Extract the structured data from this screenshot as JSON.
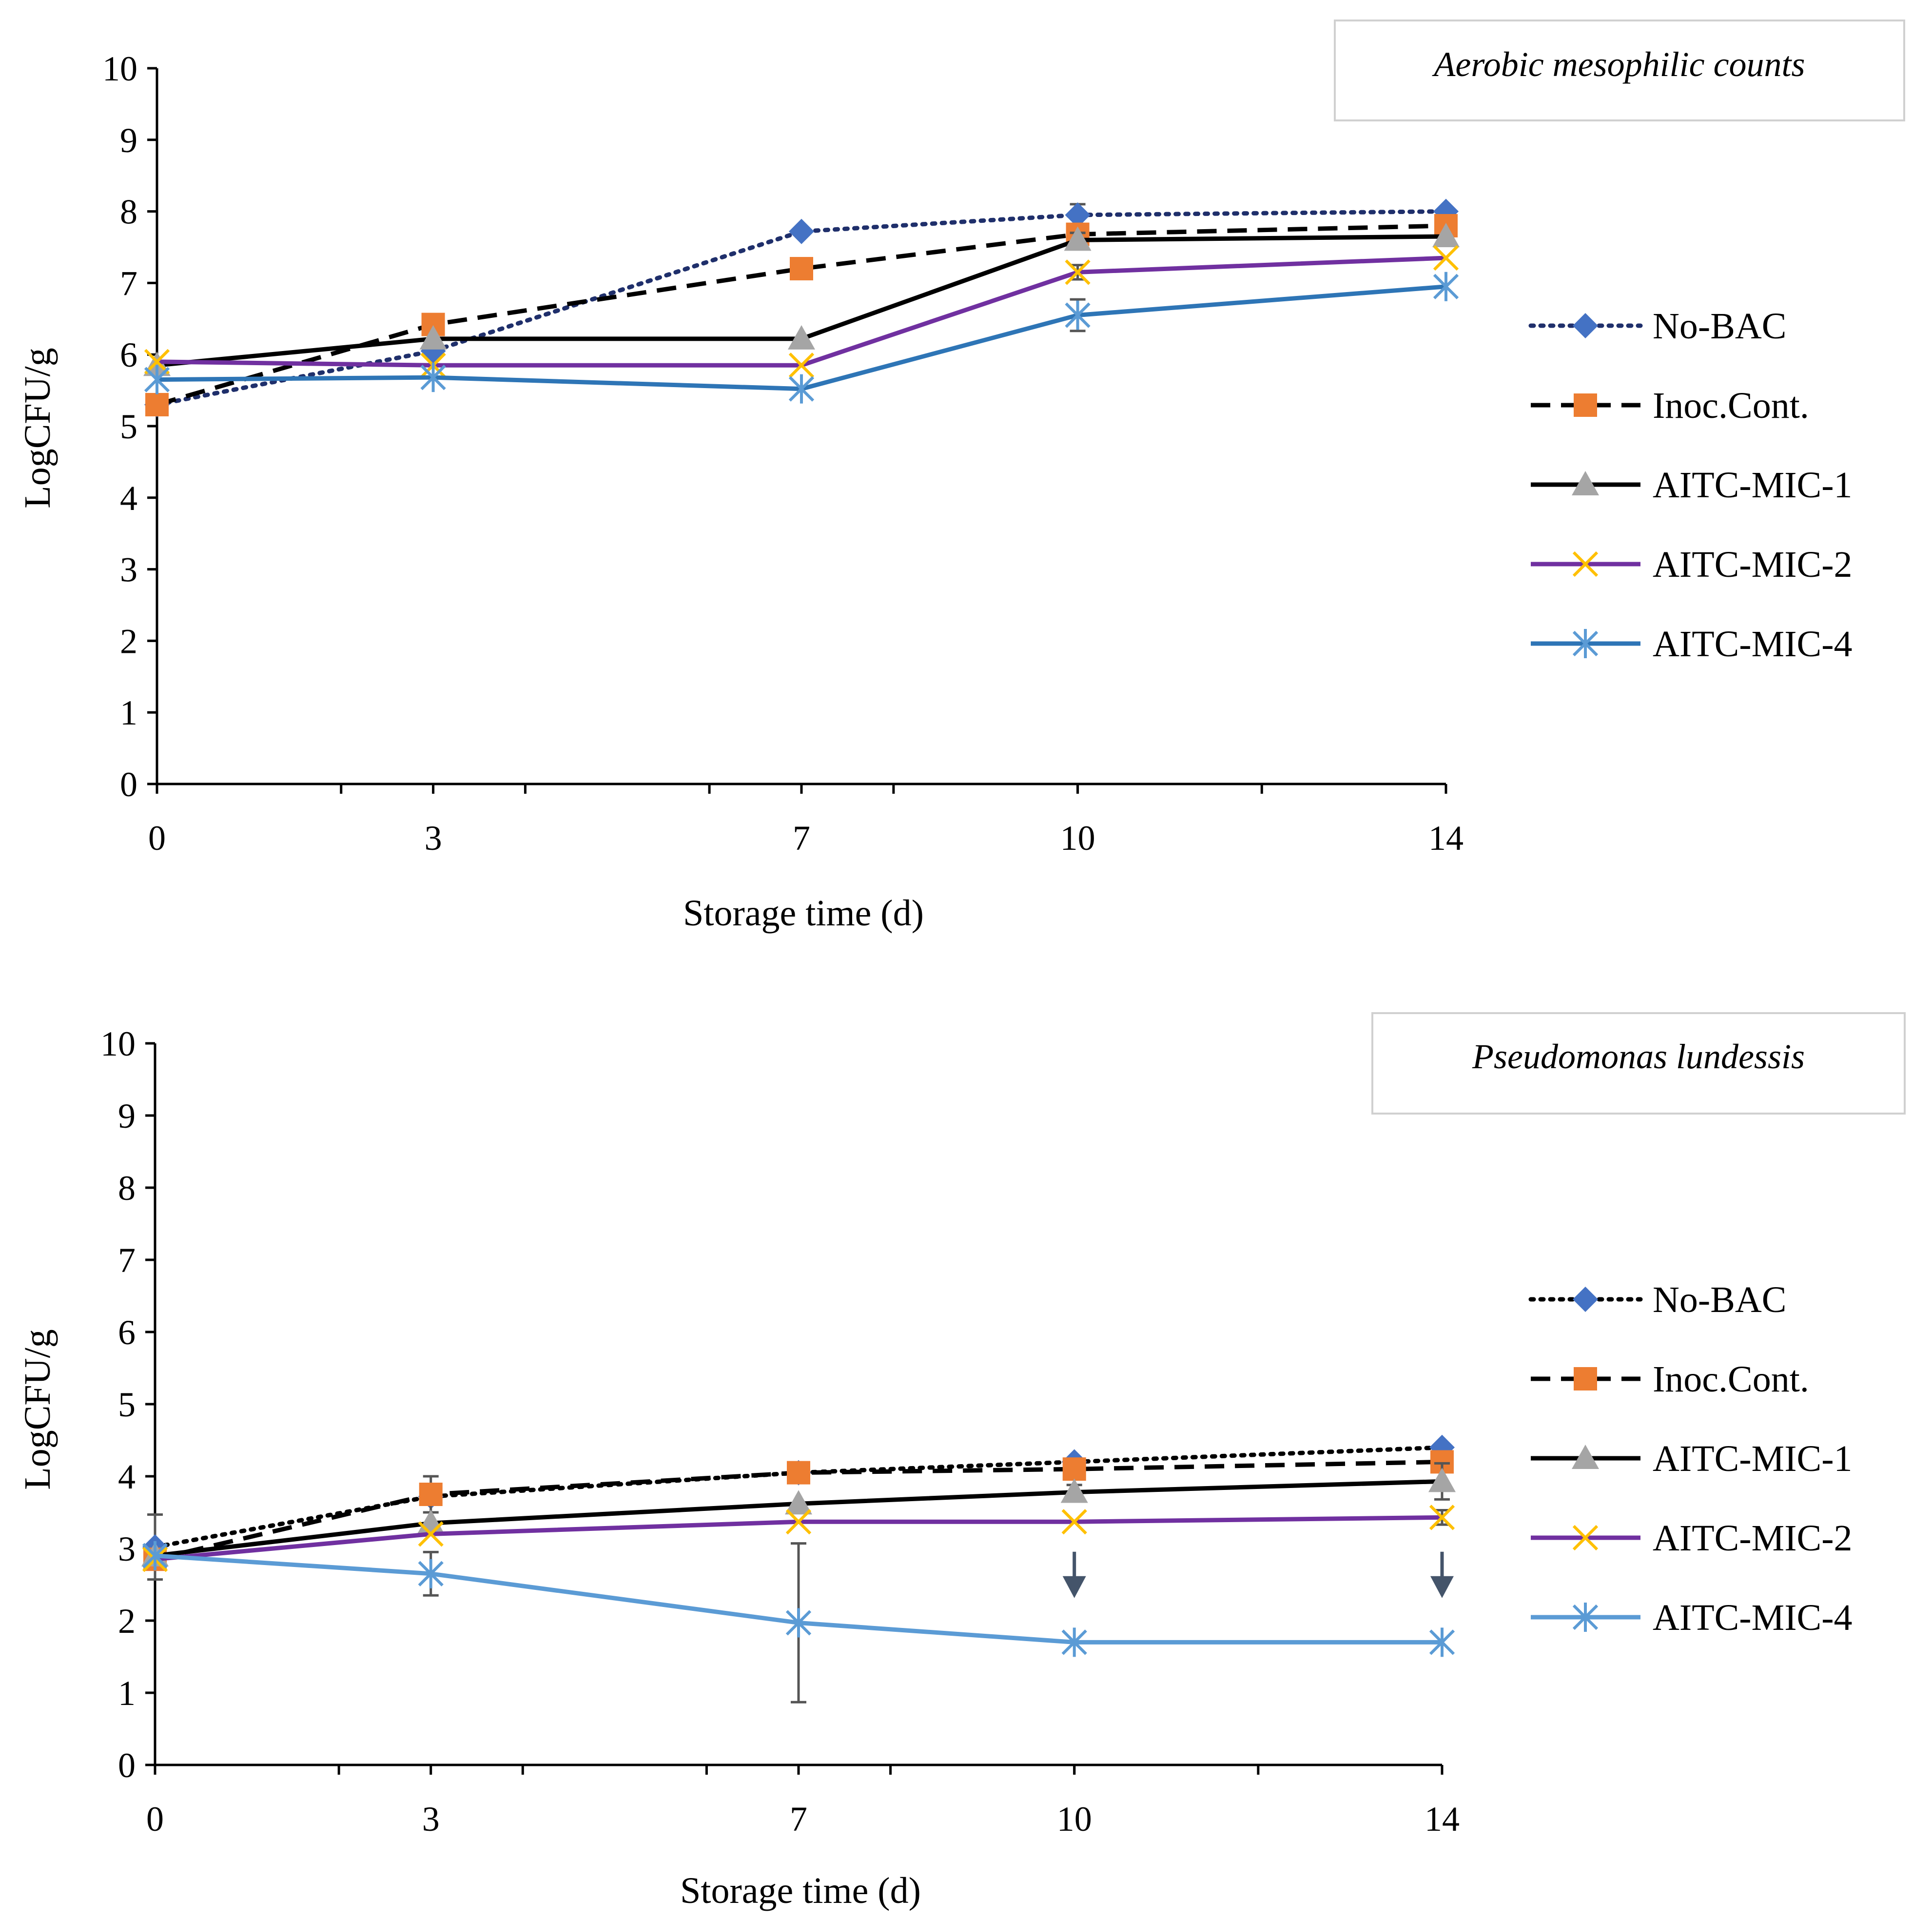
{
  "chart_data": [
    {
      "type": "line",
      "title": "Aerobic mesophilic counts",
      "xlabel": "Storage time (d)",
      "ylabel": "LogCFU/g",
      "categories": [
        "0",
        "3",
        "7",
        "10",
        "14"
      ],
      "ylim": [
        0,
        10
      ],
      "yticks": [
        "0",
        "1",
        "2",
        "3",
        "4",
        "5",
        "6",
        "7",
        "8",
        "9",
        "10"
      ],
      "legend_position": "right",
      "series": [
        {
          "name": "No-BAC",
          "values": [
            5.3,
            6.05,
            7.72,
            7.95,
            8.0
          ],
          "error": [
            0.05,
            0.05,
            0.05,
            0.15,
            0.05
          ],
          "line_color": "#1f2f6b",
          "marker_color": "#4472c4",
          "marker": "diamond",
          "dash": "dotted"
        },
        {
          "name": "Inoc.Cont.",
          "values": [
            5.3,
            6.42,
            7.2,
            7.68,
            7.8
          ],
          "error": [
            0.05,
            0.05,
            0.05,
            0.1,
            0.05
          ],
          "line_color": "#000000",
          "marker_color": "#ed7d31",
          "marker": "square",
          "dash": "dashed"
        },
        {
          "name": "AITC-MIC-1",
          "values": [
            5.85,
            6.22,
            6.22,
            7.6,
            7.65
          ],
          "error": [
            0.05,
            0.05,
            0.05,
            0.1,
            0.05
          ],
          "line_color": "#000000",
          "marker_color": "#a5a5a5",
          "marker": "triangle",
          "dash": "solid"
        },
        {
          "name": "AITC-MIC-2",
          "values": [
            5.9,
            5.85,
            5.85,
            7.15,
            7.35
          ],
          "error": [
            0.05,
            0.05,
            0.05,
            0.1,
            0.05
          ],
          "line_color": "#7030a0",
          "marker_color": "#ffc000",
          "marker": "x",
          "dash": "solid"
        },
        {
          "name": "AITC-MIC-4",
          "values": [
            5.65,
            5.68,
            5.52,
            6.55,
            6.95
          ],
          "error": [
            0.05,
            0.05,
            0.05,
            0.22,
            0.05
          ],
          "line_color": "#2e75b6",
          "marker_color": "#5b9bd5",
          "marker": "star",
          "dash": "solid"
        }
      ]
    },
    {
      "type": "line",
      "title": "Pseudomonas lundessis",
      "xlabel": "Storage time (d)",
      "ylabel": "LogCFU/g",
      "categories": [
        "0",
        "3",
        "7",
        "10",
        "14"
      ],
      "ylim": [
        0,
        10
      ],
      "yticks": [
        "0",
        "1",
        "2",
        "3",
        "4",
        "5",
        "6",
        "7",
        "8",
        "9",
        "10"
      ],
      "legend_position": "right",
      "annotations": [
        {
          "type": "down-arrow",
          "category": "10",
          "value": 2.65
        },
        {
          "type": "down-arrow",
          "category": "14",
          "value": 2.65
        }
      ],
      "series": [
        {
          "name": "No-BAC",
          "values": [
            3.02,
            3.72,
            4.05,
            4.2,
            4.4
          ],
          "error": [
            0.45,
            0.1,
            0.05,
            0.05,
            0.05
          ],
          "line_color": "#000000",
          "marker_color": "#4472c4",
          "marker": "diamond",
          "dash": "dotted"
        },
        {
          "name": "Inoc.Cont.",
          "values": [
            2.85,
            3.75,
            4.05,
            4.1,
            4.2
          ],
          "error": [
            0.1,
            0.25,
            0.05,
            0.05,
            0.05
          ],
          "line_color": "#000000",
          "marker_color": "#ed7d31",
          "marker": "square",
          "dash": "dashed"
        },
        {
          "name": "AITC-MIC-1",
          "values": [
            2.9,
            3.35,
            3.62,
            3.78,
            3.93
          ],
          "error": [
            0.05,
            0.05,
            0.05,
            0.1,
            0.25
          ],
          "line_color": "#000000",
          "marker_color": "#a5a5a5",
          "marker": "triangle",
          "dash": "solid"
        },
        {
          "name": "AITC-MIC-2",
          "values": [
            2.85,
            3.2,
            3.37,
            3.37,
            3.43
          ],
          "error": [
            0.05,
            0.05,
            0.05,
            0.05,
            0.1
          ],
          "line_color": "#7030a0",
          "marker_color": "#ffc000",
          "marker": "x",
          "dash": "solid"
        },
        {
          "name": "AITC-MIC-4",
          "values": [
            2.9,
            2.65,
            1.97,
            1.7,
            1.7
          ],
          "error": [
            0.05,
            0.3,
            1.1,
            0.0,
            0.0
          ],
          "line_color": "#5b9bd5",
          "marker_color": "#5b9bd5",
          "marker": "star",
          "dash": "solid"
        }
      ]
    }
  ]
}
